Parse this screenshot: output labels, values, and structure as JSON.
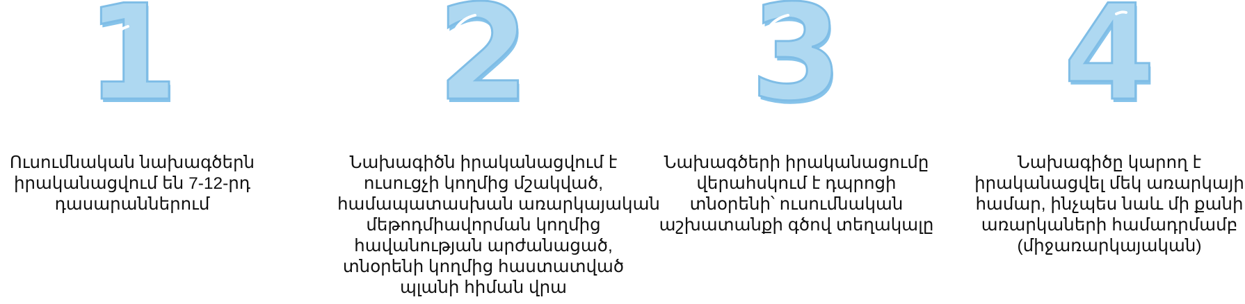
{
  "colors": {
    "numeral_fill": "#aed8f1",
    "numeral_stroke": "#7fbde6",
    "numeral_shadow": "#86c3ea",
    "numeral_highlight": "#ffffff",
    "text": "#111111"
  },
  "steps": [
    {
      "number": "1",
      "lines": [
        "Ուսումնական նախագծերն",
        "իրականացվում են 7-12-րդ",
        "դասարաններում"
      ]
    },
    {
      "number": "2",
      "lines": [
        "Նախագիծն իրականացվում է",
        "ուսուցչի կողմից մշակված,",
        "համապատասխան առարկայական",
        "մեթոդմիավորման կողմից",
        "հավանության արժանացած,",
        "տնօրենի կողմից հաստատված",
        "պլանի հիման վրա"
      ]
    },
    {
      "number": "3",
      "lines": [
        "Նախագծերի իրականացումը",
        "վերահսկում է դպրոցի",
        "տնօրենի՝ ուսումնական",
        "աշխատանքի գծով տեղակալը"
      ]
    },
    {
      "number": "4",
      "lines": [
        "Նախագիծը կարող է",
        "իրականացվել մեկ առարկայի",
        "համար, ինչպես նաև մի քանի",
        "առարկաների համադրմամբ",
        "(միջառարկայական)"
      ]
    }
  ]
}
